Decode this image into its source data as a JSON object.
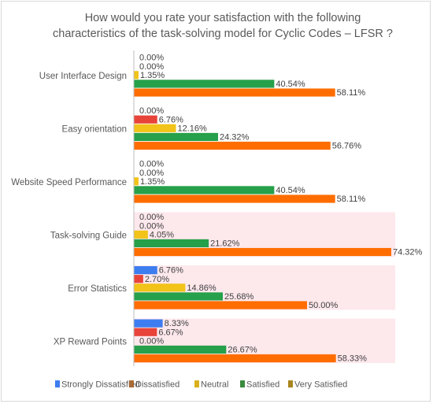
{
  "chart_data": {
    "type": "bar",
    "orientation": "horizontal",
    "title_lines": [
      "How would you rate your satisfaction with the following",
      "characteristics of the task-solving model for Cyclic Codes – LFSR ?"
    ],
    "categories": [
      "User Interface Design",
      "Easy orientation",
      "Website Speed Performance",
      "Task-solving Guide",
      "Error Statistics",
      "XP Reward Points"
    ],
    "series": [
      {
        "name": "Strongly Dissatisfied",
        "color": "#3d7df0",
        "values": [
          0.0,
          0.0,
          0.0,
          0.0,
          6.76,
          8.33
        ],
        "labels": [
          "0.00%",
          "0.00%",
          "0.00%",
          "0.00%",
          "6.76%",
          "8.33%"
        ]
      },
      {
        "name": "Dissatisfied",
        "color": "#e8443a",
        "values": [
          0.0,
          6.76,
          0.0,
          0.0,
          2.7,
          6.67
        ],
        "labels": [
          "0.00%",
          "6.76%",
          "0.00%",
          "0.00%",
          "2.70%",
          "6.67%"
        ]
      },
      {
        "name": "Neutral",
        "color": "#f2c318",
        "values": [
          1.35,
          12.16,
          1.35,
          4.05,
          14.86,
          0.0
        ],
        "labels": [
          "1.35%",
          "12.16%",
          "1.35%",
          "4.05%",
          "14.86%",
          "0.00%"
        ]
      },
      {
        "name": "Satisfied",
        "color": "#26a04a",
        "values": [
          40.54,
          24.32,
          40.54,
          21.62,
          25.68,
          26.67
        ],
        "labels": [
          "40.54%",
          "24.32%",
          "40.54%",
          "21.62%",
          "25.68%",
          "26.67%"
        ]
      },
      {
        "name": "Very Satisfied",
        "color": "#ff6d00",
        "values": [
          58.11,
          56.76,
          58.11,
          74.32,
          50.0,
          58.33
        ],
        "labels": [
          "58.11%",
          "56.76%",
          "58.11%",
          "74.32%",
          "50.00%",
          "58.33%"
        ]
      }
    ],
    "legend_markers": [
      "#3d7df0",
      "#a86a35",
      "#d8b11a",
      "#3a8a3e",
      "#a8861f"
    ],
    "xlim": [
      0,
      75
    ],
    "grid": false,
    "legend_position": "bottom",
    "highlight_band_color": "#fde8ec"
  }
}
